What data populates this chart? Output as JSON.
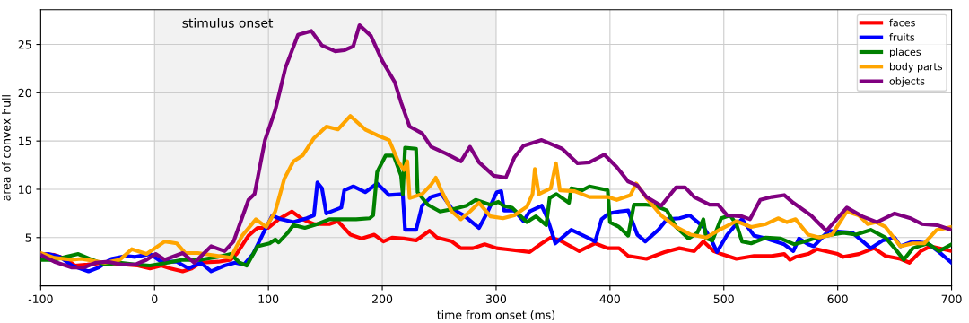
{
  "chart_data": {
    "type": "line",
    "xlabel": "time from onset (ms)",
    "ylabel": "area of convex hull",
    "xlim": [
      -100,
      700
    ],
    "ylim": [
      0,
      28.6
    ],
    "xticks": [
      -100,
      0,
      100,
      200,
      300,
      400,
      500,
      600,
      700
    ],
    "yticks": [
      5,
      10,
      15,
      20,
      25
    ],
    "grid": true,
    "legend": "top right",
    "marker": "none",
    "line_style": "solid",
    "bands": [
      {
        "axis": "x",
        "from": 0,
        "to": 300,
        "label": "stimulus onset",
        "color": "#f2f2f2"
      }
    ],
    "series": [
      {
        "name": "faces",
        "color": "#ff0000",
        "x": [
          -100,
          -88,
          -78,
          -70,
          -59,
          -43.6,
          -25,
          -14.7,
          -4,
          6,
          14,
          24.7,
          32.6,
          40.5,
          56,
          66.8,
          72,
          82.5,
          90.4,
          99.6,
          109,
          120.6,
          130,
          140,
          153.5,
          161,
          172,
          182,
          193,
          201,
          208.6,
          219,
          229.7,
          241.5,
          248,
          261,
          269,
          279.6,
          290,
          300.6,
          308.5,
          329.5,
          340,
          348,
          356,
          373,
          387,
          398,
          408,
          416,
          432,
          448,
          461,
          474,
          482,
          491,
          497.7,
          511,
          526.5,
          542,
          553,
          558,
          563,
          574,
          582,
          600,
          605,
          618.5,
          632,
          642,
          655,
          663,
          673,
          681.5,
          700
        ],
        "values": [
          3.3,
          3.2,
          2.8,
          2.1,
          2.2,
          2.4,
          2.2,
          2.1,
          1.8,
          2.1,
          1.8,
          1.5,
          1.8,
          2.4,
          2.5,
          2.7,
          3.3,
          5.2,
          6.0,
          6.0,
          6.9,
          7.7,
          6.9,
          6.4,
          6.4,
          6.7,
          5.3,
          4.9,
          5.3,
          4.6,
          5.0,
          4.9,
          4.7,
          5.7,
          5.0,
          4.6,
          3.9,
          3.9,
          4.3,
          3.9,
          3.8,
          3.5,
          4.4,
          5.0,
          4.7,
          3.6,
          4.4,
          3.9,
          3.9,
          3.1,
          2.8,
          3.5,
          3.9,
          3.6,
          4.6,
          3.6,
          3.3,
          2.8,
          3.1,
          3.1,
          3.3,
          2.7,
          3.0,
          3.3,
          3.8,
          3.3,
          3.0,
          3.3,
          3.9,
          3.1,
          2.8,
          2.4,
          3.6,
          4.1,
          3.6
        ]
      },
      {
        "name": "fruits",
        "color": "#0000ff",
        "x": [
          -100,
          -93.5,
          -83,
          -72.5,
          -58,
          -49,
          -38,
          -25,
          -17,
          -4,
          6,
          19.5,
          30,
          40.5,
          49.7,
          61.5,
          70.7,
          78.6,
          86.5,
          95.7,
          103.5,
          111,
          122,
          133.7,
          140,
          143,
          147,
          150.8,
          164,
          166.6,
          174.5,
          185,
          195.5,
          206,
          218,
          220,
          229.7,
          235,
          243,
          252,
          261,
          271.7,
          285,
          292.7,
          300.6,
          304.5,
          307,
          316,
          324,
          329.5,
          340,
          345,
          352,
          366,
          382,
          387,
          392.6,
          399,
          408,
          416,
          424,
          431,
          442.5,
          450,
          461,
          470,
          482,
          488.5,
          494,
          503,
          511,
          516,
          526.5,
          537,
          553,
          561,
          566,
          574,
          579,
          592,
          613,
          629,
          639.5,
          650,
          655,
          666,
          679,
          689,
          700
        ],
        "values": [
          3.2,
          3.3,
          3.0,
          2.1,
          1.5,
          1.9,
          2.8,
          3.1,
          3.0,
          3.3,
          2.5,
          2.5,
          1.8,
          2.4,
          1.5,
          2.1,
          2.4,
          2.2,
          3.3,
          5.5,
          7.3,
          6.9,
          6.6,
          7.0,
          7.3,
          10.7,
          10.1,
          7.5,
          8.1,
          9.9,
          10.3,
          9.7,
          10.6,
          9.4,
          9.5,
          5.8,
          5.8,
          8.3,
          9.2,
          9.5,
          8.0,
          7.3,
          6.0,
          7.7,
          9.7,
          9.8,
          7.8,
          7.8,
          6.7,
          7.7,
          8.3,
          7.0,
          4.4,
          5.8,
          4.9,
          4.6,
          6.9,
          7.5,
          7.7,
          7.8,
          5.3,
          4.6,
          5.8,
          6.9,
          7.0,
          7.3,
          6.1,
          4.9,
          3.5,
          5.3,
          6.4,
          6.9,
          5.2,
          4.9,
          4.3,
          3.6,
          4.9,
          4.3,
          4.1,
          5.7,
          5.5,
          3.9,
          4.7,
          5.0,
          4.1,
          4.6,
          4.4,
          3.5,
          2.4
        ]
      },
      {
        "name": "places",
        "color": "#008000",
        "x": [
          -100,
          -88,
          -78,
          -67,
          -57,
          -43.6,
          -30.5,
          -17,
          -4,
          11.6,
          24.7,
          40.5,
          56,
          66.8,
          74.7,
          81,
          90.4,
          101,
          106,
          109,
          117,
          122,
          132,
          143,
          153.5,
          172,
          177,
          189,
          192,
          195.5,
          203,
          210,
          216.5,
          218,
          220,
          229.7,
          231,
          240,
          250.7,
          264,
          274,
          282,
          295,
          302,
          306,
          314,
          327,
          335,
          344,
          347,
          353,
          364,
          366,
          375.5,
          382,
          398,
          400,
          408,
          416,
          421,
          432,
          440,
          450,
          458,
          469,
          476.7,
          482,
          484.5,
          490,
          497.7,
          505.5,
          511,
          516,
          524,
          537,
          550,
          562,
          574,
          579,
          595,
          605,
          616,
          629,
          642,
          650,
          658,
          666,
          679,
          689,
          700
        ],
        "values": [
          2.7,
          2.7,
          3.0,
          3.3,
          2.8,
          2.2,
          2.4,
          2.2,
          2.1,
          2.4,
          2.7,
          2.7,
          3.0,
          3.3,
          2.4,
          2.1,
          4.1,
          4.4,
          4.8,
          4.5,
          5.5,
          6.3,
          6.0,
          6.4,
          6.9,
          6.9,
          6.9,
          7.0,
          7.3,
          11.8,
          13.5,
          13.5,
          11.4,
          9.5,
          14.3,
          14.2,
          9.7,
          8.4,
          7.7,
          8.0,
          8.3,
          8.9,
          8.4,
          8.7,
          8.3,
          8.1,
          6.6,
          7.2,
          6.3,
          9.1,
          9.5,
          8.6,
          10.1,
          9.9,
          10.3,
          9.9,
          6.6,
          6.1,
          5.2,
          8.4,
          8.4,
          8.3,
          7.8,
          6.1,
          4.9,
          5.5,
          6.9,
          4.9,
          4.7,
          7.0,
          7.3,
          6.4,
          4.6,
          4.4,
          5.0,
          4.9,
          4.3,
          4.7,
          4.9,
          5.3,
          5.5,
          5.3,
          5.8,
          5.0,
          3.9,
          2.7,
          3.9,
          4.4,
          3.6,
          4.3
        ]
      },
      {
        "name": "body parts",
        "color": "#ffa500",
        "x": [
          -100,
          -88,
          -72.5,
          -64.6,
          -43.6,
          -30.5,
          -20,
          -7,
          9,
          19.5,
          27,
          38,
          56,
          66.8,
          77,
          89,
          98,
          106,
          114,
          122,
          130,
          140,
          151,
          161,
          172,
          185,
          195.5,
          206,
          214,
          219,
          222,
          224,
          235,
          243,
          247,
          251,
          261,
          269,
          277,
          285,
          295,
          306,
          316,
          327,
          332,
          334,
          337.5,
          348,
          352.5,
          356,
          369,
          382,
          398,
          406,
          418,
          423,
          432,
          445,
          458,
          471,
          484.5,
          497.7,
          511,
          524,
          537,
          547.6,
          555.5,
          563,
          574,
          584,
          595,
          608,
          618.5,
          626.4,
          634,
          642,
          655,
          666,
          676,
          687,
          700
        ],
        "values": [
          3.4,
          2.9,
          2.7,
          2.8,
          2.4,
          2.7,
          3.8,
          3.3,
          4.6,
          4.4,
          3.4,
          3.4,
          3.1,
          2.9,
          5.2,
          6.9,
          6.1,
          7.7,
          11.1,
          12.9,
          13.5,
          15.3,
          16.5,
          16.2,
          17.6,
          16.2,
          15.6,
          15.1,
          12.9,
          12.0,
          12.9,
          9.1,
          9.5,
          10.5,
          11.2,
          10.1,
          7.7,
          6.9,
          7.7,
          8.6,
          7.2,
          7.0,
          7.3,
          8.2,
          9.5,
          12.1,
          9.5,
          10.1,
          12.7,
          9.9,
          9.8,
          9.2,
          9.2,
          8.9,
          9.4,
          10.6,
          9.1,
          7.3,
          6.1,
          5.3,
          5.0,
          5.9,
          6.7,
          6.1,
          6.4,
          7.0,
          6.6,
          6.9,
          5.3,
          5.0,
          5.3,
          7.7,
          7.3,
          6.4,
          6.6,
          6.1,
          4.1,
          4.4,
          4.4,
          5.8,
          6.1
        ]
      },
      {
        "name": "objects",
        "color": "#800080",
        "x": [
          -100,
          -88,
          -72.5,
          -62,
          -51.5,
          -41,
          -28,
          -17,
          -7,
          1,
          9,
          24.7,
          35,
          49.7,
          61.5,
          69.4,
          82.5,
          87.8,
          97,
          106,
          115,
          126,
          137.7,
          147,
          158.7,
          166.6,
          174.5,
          180,
          190,
          200,
          211,
          216.5,
          224,
          235,
          243,
          256,
          269,
          277,
          285,
          298,
          308.5,
          316,
          324,
          340,
          358,
          371.5,
          382,
          395,
          406,
          416,
          424,
          432,
          445,
          458,
          466,
          474,
          487.5,
          495,
          503,
          516,
          523,
          532,
          542,
          553,
          561,
          576.5,
          590,
          608,
          621.5,
          634.5,
          650,
          664,
          674,
          687,
          700
        ],
        "values": [
          3.2,
          2.5,
          1.9,
          1.9,
          2.4,
          2.5,
          2.2,
          2.2,
          2.7,
          3.3,
          2.7,
          3.4,
          2.4,
          4.1,
          3.6,
          4.6,
          8.9,
          9.5,
          15.1,
          18.2,
          22.6,
          26.0,
          26.4,
          24.9,
          24.3,
          24.4,
          24.8,
          27.0,
          25.9,
          23.3,
          21.1,
          19.0,
          16.5,
          15.8,
          14.4,
          13.7,
          12.9,
          14.4,
          12.8,
          11.4,
          11.2,
          13.3,
          14.5,
          15.1,
          14.2,
          12.7,
          12.8,
          13.6,
          12.3,
          10.8,
          10.4,
          9.2,
          8.3,
          10.2,
          10.2,
          9.2,
          8.4,
          8.4,
          7.3,
          7.2,
          6.9,
          8.9,
          9.2,
          9.4,
          8.6,
          7.3,
          5.7,
          8.1,
          7.2,
          6.6,
          7.5,
          7.0,
          6.4,
          6.3,
          5.8
        ]
      }
    ]
  }
}
